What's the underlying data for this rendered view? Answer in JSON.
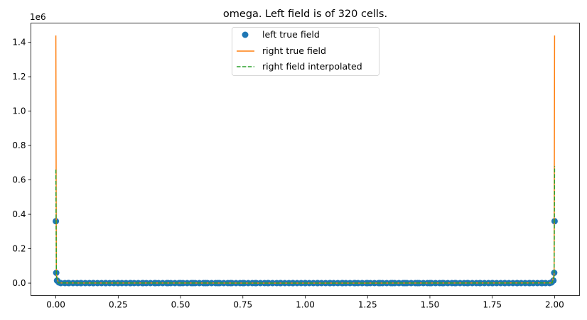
{
  "chart_data": {
    "type": "line",
    "title": "omega. Left field is of 320 cells.",
    "xlabel": "",
    "ylabel": "",
    "y_offset_text": "1e6",
    "xlim": [
      -0.1,
      2.1
    ],
    "ylim": [
      -0.072,
      1.512
    ],
    "xticks": [
      0.0,
      0.25,
      0.5,
      0.75,
      1.0,
      1.25,
      1.5,
      1.75,
      2.0
    ],
    "xtick_labels": [
      "0.00",
      "0.25",
      "0.50",
      "0.75",
      "1.00",
      "1.25",
      "1.50",
      "1.75",
      "2.00"
    ],
    "yticks": [
      0.0,
      0.2,
      0.4,
      0.6,
      0.8,
      1.0,
      1.2,
      1.4
    ],
    "ytick_labels": [
      "0.0",
      "0.2",
      "0.4",
      "0.6",
      "0.8",
      "1.0",
      "1.2",
      "1.4"
    ],
    "grid": false,
    "legend_position": "top-center",
    "legend": [
      "left true field",
      "right true field",
      "right field interpolated"
    ],
    "series": [
      {
        "name": "left true field",
        "style": "markers",
        "color": "#1f77b4",
        "note": "320 cells; only visible points sampled",
        "x": [
          0.0,
          0.00156,
          0.00469,
          0.0125,
          0.05,
          0.1,
          0.15,
          0.2,
          0.25,
          0.3,
          0.35,
          0.4,
          0.45,
          0.5,
          0.55,
          0.6,
          0.65,
          0.7,
          0.75,
          0.8,
          0.85,
          0.9,
          0.95,
          1.0,
          1.05,
          1.1,
          1.15,
          1.2,
          1.25,
          1.3,
          1.35,
          1.4,
          1.45,
          1.5,
          1.55,
          1.6,
          1.65,
          1.7,
          1.75,
          1.8,
          1.85,
          1.9,
          1.95,
          1.9875,
          1.99531,
          1.99844,
          2.0
        ],
        "y": [
          0.36,
          0.06,
          0.015,
          0.004,
          0.0008,
          0.0004,
          0.0003,
          0.0002,
          0.0002,
          0.0002,
          0.0002,
          0.0002,
          0.0002,
          0.0002,
          0.0002,
          0.0002,
          0.0002,
          0.0002,
          0.0002,
          0.0002,
          0.0002,
          0.0002,
          0.0002,
          0.0002,
          0.0002,
          0.0002,
          0.0002,
          0.0002,
          0.0002,
          0.0002,
          0.0002,
          0.0002,
          0.0002,
          0.0002,
          0.0002,
          0.0002,
          0.0002,
          0.0002,
          0.0002,
          0.0002,
          0.0002,
          0.0003,
          0.0004,
          0.004,
          0.015,
          0.06,
          0.36
        ]
      },
      {
        "name": "right true field",
        "style": "solid",
        "color": "#ff7f0e",
        "x": [
          0.0,
          0.002,
          0.01,
          1.0,
          1.99,
          1.998,
          2.0
        ],
        "y": [
          1.44,
          0.05,
          0.001,
          0.0002,
          0.001,
          0.05,
          1.44
        ]
      },
      {
        "name": "right field interpolated",
        "style": "dashed",
        "color": "#2ca02c",
        "x": [
          0.0,
          0.002,
          0.01,
          1.0,
          1.99,
          1.998,
          2.0
        ],
        "y": [
          0.66,
          0.04,
          0.001,
          0.0002,
          0.001,
          0.04,
          0.68
        ]
      }
    ]
  }
}
